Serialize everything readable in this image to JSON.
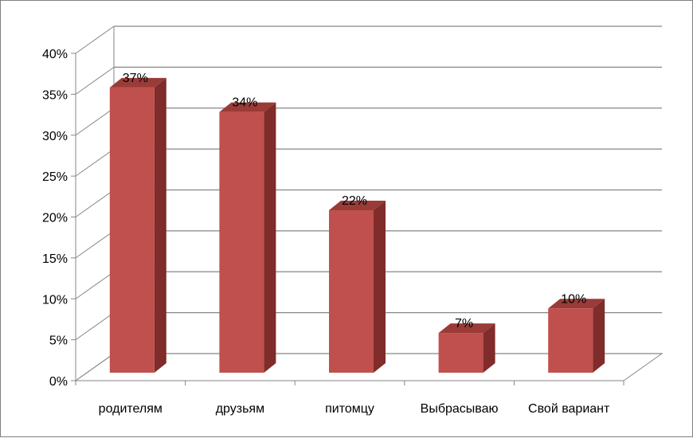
{
  "chart_data": {
    "type": "bar",
    "categories": [
      "родителям",
      "друзьям",
      "питомцу",
      "Выбрасываю",
      "Свой вариант"
    ],
    "values": [
      37,
      34,
      22,
      7,
      10
    ],
    "data_labels": [
      "37%",
      "34%",
      "22%",
      "7%",
      "10%"
    ],
    "title": "",
    "xlabel": "",
    "ylabel": "",
    "ylim": [
      0,
      40
    ],
    "y_ticks": [
      0,
      5,
      10,
      15,
      20,
      25,
      30,
      35,
      40
    ],
    "y_tick_labels": [
      "0%",
      "5%",
      "10%",
      "15%",
      "20%",
      "25%",
      "30%",
      "35%",
      "40%"
    ],
    "grid": true,
    "style": "3d-column",
    "bar_colors": {
      "front": "#c0504d",
      "side": "#7f2c2a",
      "top": "#9a3b38"
    }
  }
}
